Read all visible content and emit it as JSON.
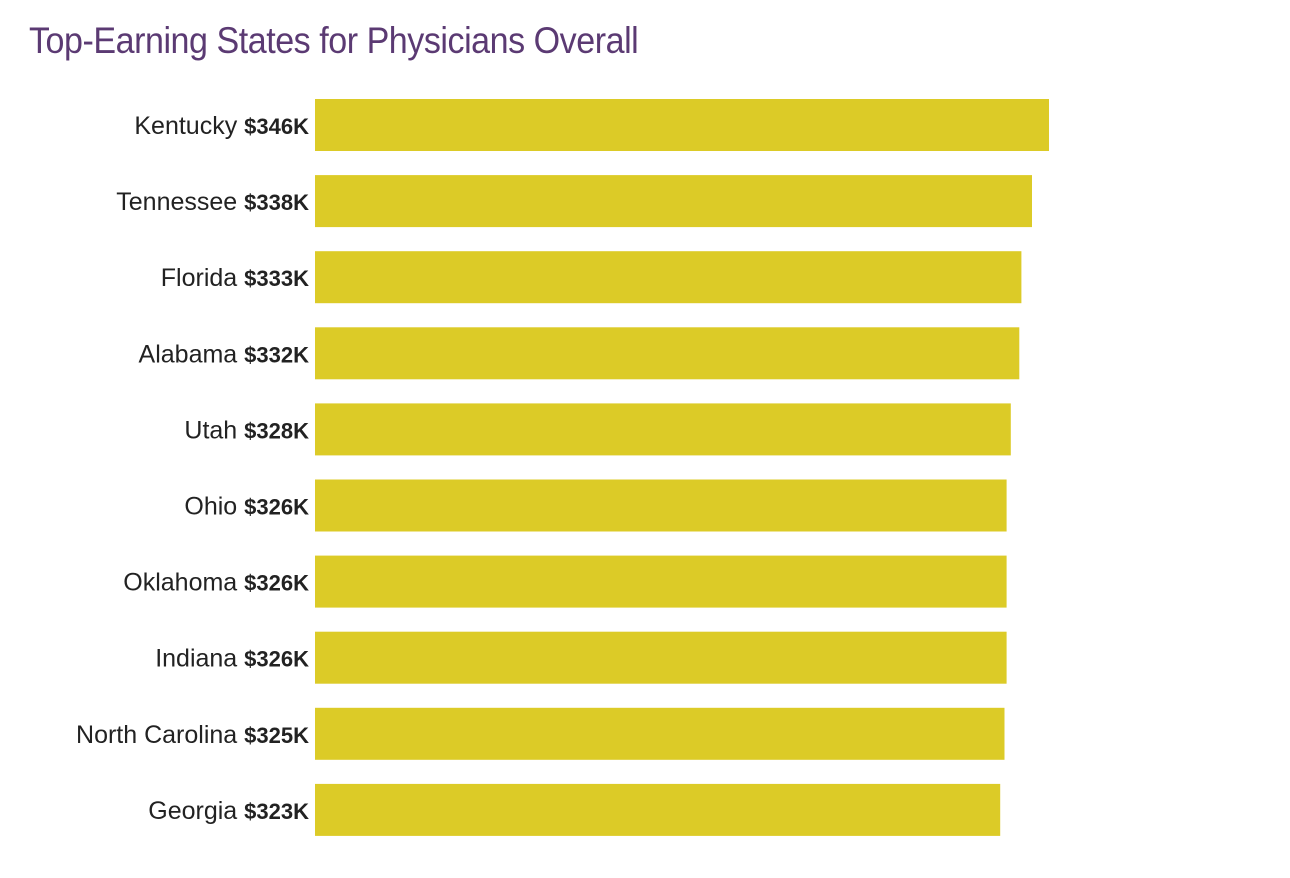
{
  "chart_data": {
    "type": "bar",
    "orientation": "horizontal",
    "title": "Top-Earning States for Physicians Overall",
    "categories": [
      "Kentucky",
      "Tennessee",
      "Florida",
      "Alabama",
      "Utah",
      "Ohio",
      "Oklahoma",
      "Indiana",
      "North Carolina",
      "Georgia"
    ],
    "values": [
      346,
      338,
      333,
      332,
      328,
      326,
      326,
      326,
      325,
      323
    ],
    "value_labels": [
      "$346K",
      "$338K",
      "$333K",
      "$332K",
      "$328K",
      "$326K",
      "$326K",
      "$326K",
      "$325K",
      "$323K"
    ],
    "xlabel": "",
    "ylabel": "",
    "xlim": [
      0,
      346
    ],
    "grid": false,
    "legend": "none"
  },
  "colors": {
    "title": "#5b3a73",
    "bar": "#dccb27",
    "text": "#222222"
  }
}
